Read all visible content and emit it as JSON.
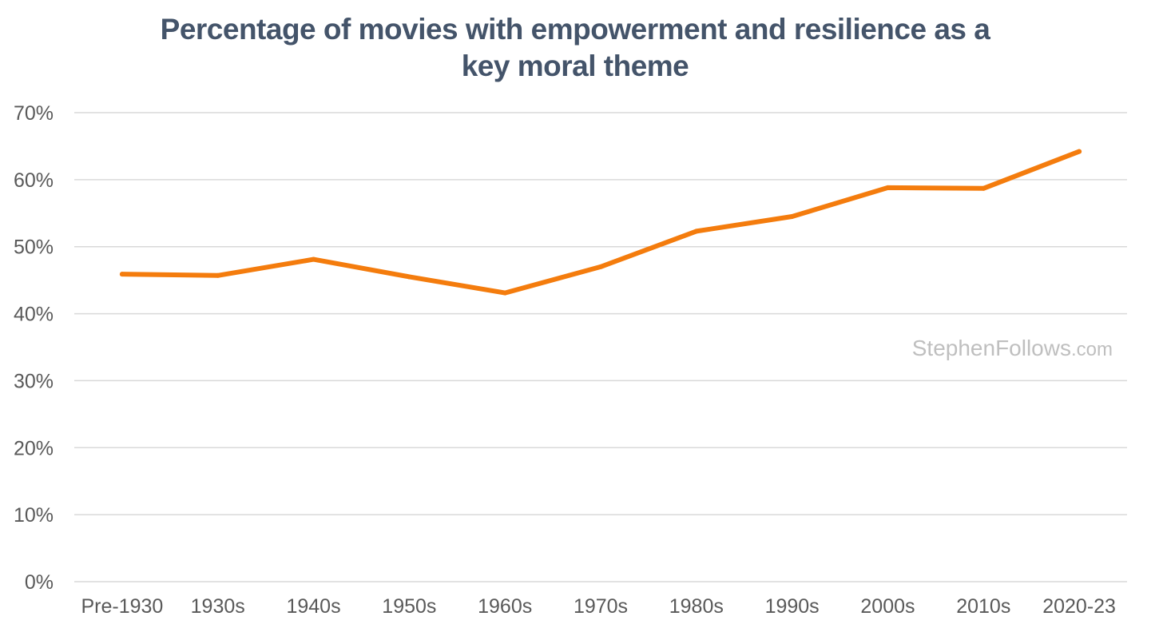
{
  "colors": {
    "title": "#44546a",
    "line": "#f47c0d",
    "grid": "#d9d9d9",
    "tick_text": "#595959",
    "watermark": "#bfbfbf",
    "background": "#ffffff"
  },
  "chart_data": {
    "type": "line",
    "title_lines": [
      "Percentage of movies with empowerment and resilience as a",
      "key moral theme"
    ],
    "xlabel": "",
    "ylabel": "",
    "categories": [
      "Pre-1930",
      "1930s",
      "1940s",
      "1950s",
      "1960s",
      "1970s",
      "1980s",
      "1990s",
      "2000s",
      "2010s",
      "2020-23"
    ],
    "series": [
      {
        "values": [
          45.9,
          45.7,
          48.1,
          45.5,
          43.1,
          47.0,
          52.3,
          54.5,
          58.8,
          58.7,
          64.2
        ]
      }
    ],
    "ylim": [
      0,
      70
    ],
    "yticks": [
      0,
      10,
      20,
      30,
      40,
      50,
      60,
      70
    ],
    "y_tick_format": "percent",
    "grid": true,
    "legend": "none",
    "watermark": {
      "main": "StephenFollows",
      "suffix": ".com"
    }
  }
}
